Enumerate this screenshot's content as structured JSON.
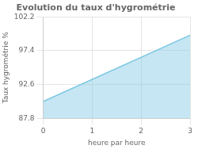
{
  "chart_data": {
    "type": "area",
    "title": "Evolution du taux d'hygrométrie",
    "xlabel": "heure par heure",
    "ylabel": "Taux hygrométrie %",
    "x": [
      0,
      3
    ],
    "values": [
      90.2,
      99.6
    ],
    "color": "#7ec8e3",
    "xlim": [
      0,
      3
    ],
    "ylim": [
      87.8,
      102.2
    ],
    "xticks": [
      0,
      1,
      2,
      3
    ],
    "yticks": [
      87.8,
      92.6,
      97.4,
      102.2
    ],
    "grid": true
  }
}
